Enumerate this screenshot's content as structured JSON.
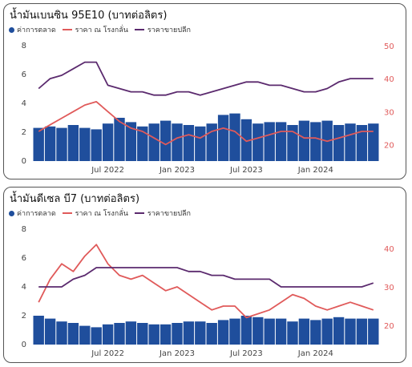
{
  "charts": [
    {
      "title": "น้ำมันเบนซิน 95E10 (บาทต่อลิตร)",
      "legend": [
        "ค่าการตลาด",
        "ราคา ณ โรงกลั่น",
        "ราคาขายปลีก"
      ]
    },
    {
      "title": "น้ำมันดีเซล บี7 (บาทต่อลิตร)",
      "legend": [
        "ค่าการตลาด",
        "ราคา ณ โรงกลั่น",
        "ราคาขายปลีก"
      ]
    }
  ],
  "colors": {
    "margin": "#1f4e9c",
    "refinery": "#e05a5a",
    "retail": "#5b2a6e"
  },
  "chart_data": [
    {
      "type": "bar",
      "title": "น้ำมันเบนซิน 95E10 (บาทต่อลิตร)",
      "x_tick_labels": [
        "Jul 2022",
        "Jan 2023",
        "Jul 2023",
        "Jan 2024"
      ],
      "y_left_ticks": [
        0,
        2,
        4,
        6,
        8
      ],
      "y_right_ticks": [
        20,
        30,
        40,
        50
      ],
      "ylim_left": [
        0,
        8
      ],
      "ylim_right": [
        15,
        50
      ],
      "x_range": [
        "2022-01",
        "2024-06"
      ],
      "series": [
        {
          "name": "ค่าการตลาด",
          "type": "bar",
          "axis": "left",
          "x": [
            "2022-01",
            "2022-02",
            "2022-03",
            "2022-04",
            "2022-05",
            "2022-06",
            "2022-07",
            "2022-08",
            "2022-09",
            "2022-10",
            "2022-11",
            "2022-12",
            "2023-01",
            "2023-02",
            "2023-03",
            "2023-04",
            "2023-05",
            "2023-06",
            "2023-07",
            "2023-08",
            "2023-09",
            "2023-10",
            "2023-11",
            "2023-12",
            "2024-01",
            "2024-02",
            "2024-03",
            "2024-04",
            "2024-05",
            "2024-06"
          ],
          "values": [
            2.3,
            2.4,
            2.3,
            2.5,
            2.3,
            2.2,
            2.6,
            3.0,
            2.7,
            2.4,
            2.6,
            2.8,
            2.6,
            2.5,
            2.4,
            2.6,
            3.2,
            3.3,
            2.9,
            2.6,
            2.7,
            2.7,
            2.5,
            2.8,
            2.7,
            2.8,
            2.5,
            2.6,
            2.5,
            2.6
          ]
        },
        {
          "name": "ราคา ณ โรงกลั่น",
          "type": "line",
          "axis": "right",
          "x": [
            "2022-01",
            "2022-02",
            "2022-03",
            "2022-04",
            "2022-05",
            "2022-06",
            "2022-07",
            "2022-08",
            "2022-09",
            "2022-10",
            "2022-11",
            "2022-12",
            "2023-01",
            "2023-02",
            "2023-03",
            "2023-04",
            "2023-05",
            "2023-06",
            "2023-07",
            "2023-08",
            "2023-09",
            "2023-10",
            "2023-11",
            "2023-12",
            "2024-01",
            "2024-02",
            "2024-03",
            "2024-04",
            "2024-05",
            "2024-06"
          ],
          "values": [
            24,
            26,
            28,
            30,
            32,
            33,
            30,
            27,
            25,
            24,
            22,
            20,
            22,
            23,
            22,
            24,
            25,
            24,
            21,
            22,
            23,
            24,
            24,
            22,
            22,
            21,
            22,
            23,
            24,
            24
          ]
        },
        {
          "name": "ราคาขายปลีก",
          "type": "line",
          "axis": "right",
          "x": [
            "2022-01",
            "2022-02",
            "2022-03",
            "2022-04",
            "2022-05",
            "2022-06",
            "2022-07",
            "2022-08",
            "2022-09",
            "2022-10",
            "2022-11",
            "2022-12",
            "2023-01",
            "2023-02",
            "2023-03",
            "2023-04",
            "2023-05",
            "2023-06",
            "2023-07",
            "2023-08",
            "2023-09",
            "2023-10",
            "2023-11",
            "2023-12",
            "2024-01",
            "2024-02",
            "2024-03",
            "2024-04",
            "2024-05",
            "2024-06"
          ],
          "values": [
            37,
            40,
            41,
            43,
            45,
            45,
            38,
            37,
            36,
            36,
            35,
            35,
            36,
            36,
            35,
            36,
            37,
            38,
            39,
            39,
            38,
            38,
            37,
            36,
            36,
            37,
            39,
            40,
            40,
            40
          ]
        }
      ]
    },
    {
      "type": "bar",
      "title": "น้ำมันดีเซล บี7 (บาทต่อลิตร)",
      "x_tick_labels": [
        "Jul 2022",
        "Jan 2023",
        "Jul 2023",
        "Jan 2024"
      ],
      "y_left_ticks": [
        0,
        2,
        4,
        6,
        8
      ],
      "y_right_ticks": [
        20,
        30,
        40
      ],
      "ylim_left": [
        0,
        8
      ],
      "ylim_right": [
        15,
        45
      ],
      "x_range": [
        "2022-01",
        "2024-06"
      ],
      "series": [
        {
          "name": "ค่าการตลาด",
          "type": "bar",
          "axis": "left",
          "x": [
            "2022-01",
            "2022-02",
            "2022-03",
            "2022-04",
            "2022-05",
            "2022-06",
            "2022-07",
            "2022-08",
            "2022-09",
            "2022-10",
            "2022-11",
            "2022-12",
            "2023-01",
            "2023-02",
            "2023-03",
            "2023-04",
            "2023-05",
            "2023-06",
            "2023-07",
            "2023-08",
            "2023-09",
            "2023-10",
            "2023-11",
            "2023-12",
            "2024-01",
            "2024-02",
            "2024-03",
            "2024-04",
            "2024-05",
            "2024-06"
          ],
          "values": [
            2.0,
            1.8,
            1.6,
            1.5,
            1.3,
            1.2,
            1.4,
            1.5,
            1.6,
            1.5,
            1.4,
            1.4,
            1.5,
            1.6,
            1.6,
            1.5,
            1.7,
            1.8,
            2.0,
            1.9,
            1.8,
            1.8,
            1.6,
            1.8,
            1.7,
            1.8,
            1.9,
            1.8,
            1.8,
            1.8
          ]
        },
        {
          "name": "ราคา ณ โรงกลั่น",
          "type": "line",
          "axis": "right",
          "x": [
            "2022-01",
            "2022-02",
            "2022-03",
            "2022-04",
            "2022-05",
            "2022-06",
            "2022-07",
            "2022-08",
            "2022-09",
            "2022-10",
            "2022-11",
            "2022-12",
            "2023-01",
            "2023-02",
            "2023-03",
            "2023-04",
            "2023-05",
            "2023-06",
            "2023-07",
            "2023-08",
            "2023-09",
            "2023-10",
            "2023-11",
            "2023-12",
            "2024-01",
            "2024-02",
            "2024-03",
            "2024-04",
            "2024-05",
            "2024-06"
          ],
          "values": [
            26,
            32,
            36,
            34,
            38,
            41,
            36,
            33,
            32,
            33,
            31,
            29,
            30,
            28,
            26,
            24,
            25,
            25,
            22,
            23,
            24,
            26,
            28,
            27,
            25,
            24,
            25,
            26,
            25,
            24
          ]
        },
        {
          "name": "ราคาขายปลีก",
          "type": "line",
          "axis": "right",
          "x": [
            "2022-01",
            "2022-02",
            "2022-03",
            "2022-04",
            "2022-05",
            "2022-06",
            "2022-07",
            "2022-08",
            "2022-09",
            "2022-10",
            "2022-11",
            "2022-12",
            "2023-01",
            "2023-02",
            "2023-03",
            "2023-04",
            "2023-05",
            "2023-06",
            "2023-07",
            "2023-08",
            "2023-09",
            "2023-10",
            "2023-11",
            "2023-12",
            "2024-01",
            "2024-02",
            "2024-03",
            "2024-04",
            "2024-05",
            "2024-06"
          ],
          "values": [
            30,
            30,
            30,
            32,
            33,
            35,
            35,
            35,
            35,
            35,
            35,
            35,
            35,
            34,
            34,
            33,
            33,
            32,
            32,
            32,
            32,
            30,
            30,
            30,
            30,
            30,
            30,
            30,
            30,
            31
          ]
        }
      ]
    }
  ]
}
